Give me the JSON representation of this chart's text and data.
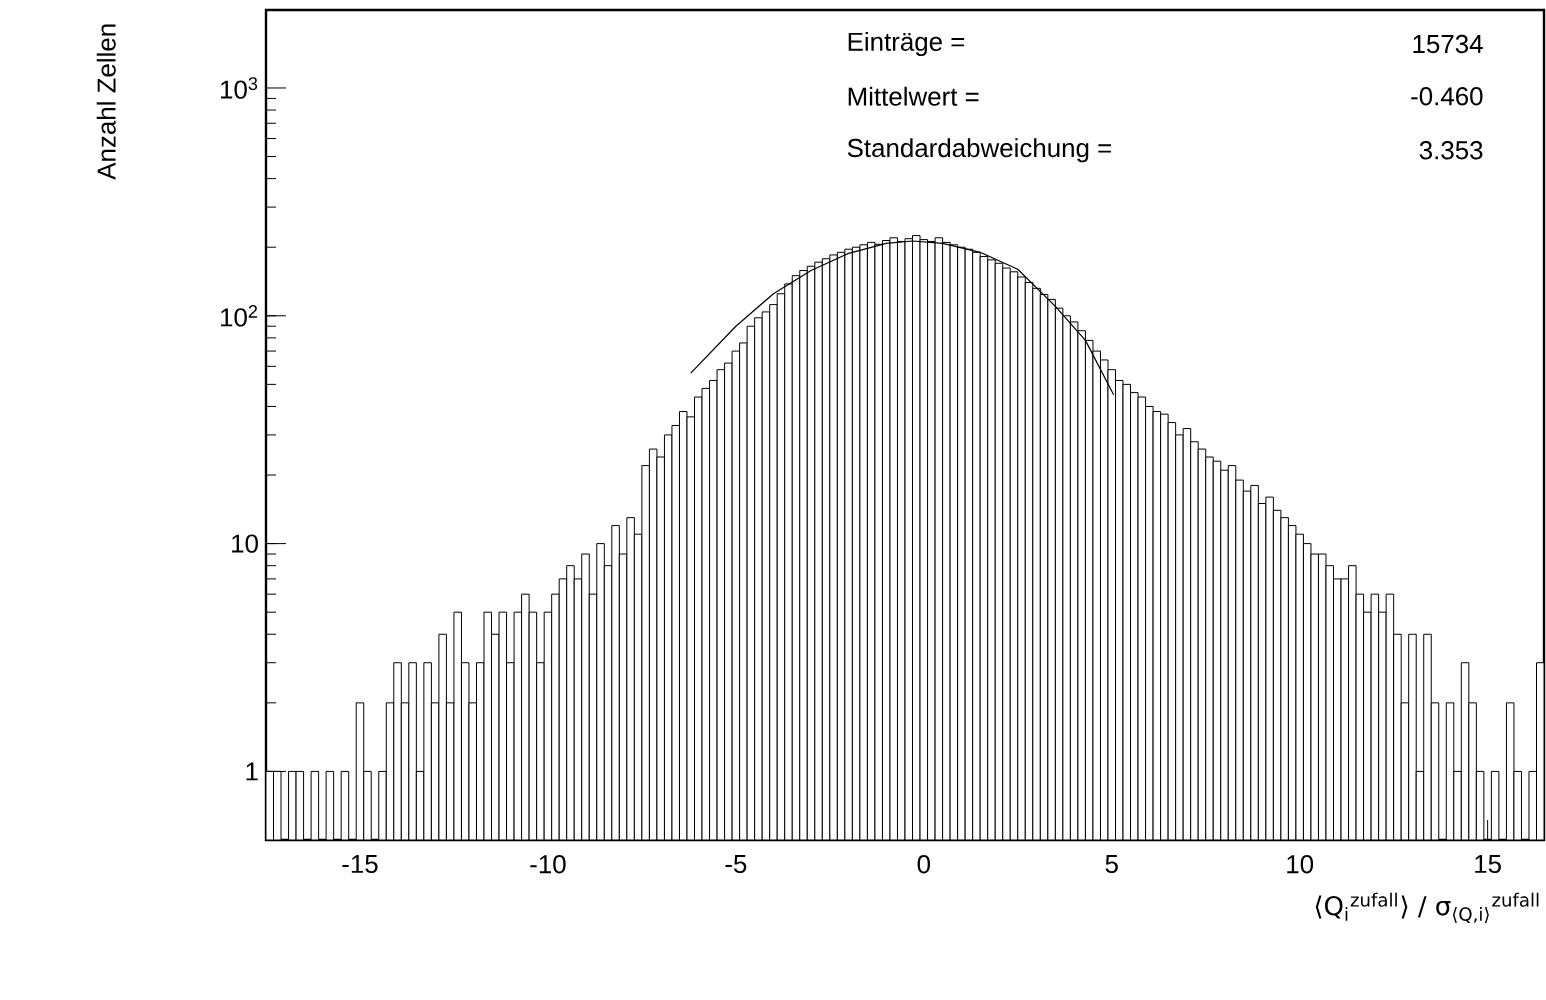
{
  "chart_data": {
    "type": "histogram",
    "xlabel": "⟨Q$_{i}$$^{zufall}$⟩ / σ$_{⟨Q,i⟩}$$^{zufall}$",
    "ylabel": "Anzahl Zellen",
    "log": "y",
    "grid": false,
    "color": "#000000",
    "xlim": [
      -17.5,
      16.5
    ],
    "ylim": [
      0.5,
      2200
    ],
    "xticks": [
      -15,
      -10,
      -5,
      0,
      5,
      10,
      15
    ],
    "yticks": [
      {
        "value": 1,
        "label": "1"
      },
      {
        "value": 10,
        "label": "10"
      },
      {
        "value": 100,
        "label": "10$^{2}$"
      },
      {
        "value": 1000,
        "label": "10$^{3}$"
      }
    ],
    "bins": [
      -17.5,
      -17.3,
      -17.1,
      -16.9,
      -16.7,
      -16.5,
      -16.3,
      -16.1,
      -15.9,
      -15.7,
      -15.5,
      -15.3,
      -15.1,
      -14.9,
      -14.7,
      -14.5,
      -14.3,
      -14.1,
      -13.9,
      -13.7,
      -13.5,
      -13.3,
      -13.1,
      -12.9,
      -12.7,
      -12.5,
      -12.3,
      -12.1,
      -11.9,
      -11.7,
      -11.5,
      -11.3,
      -11.1,
      -10.9,
      -10.7,
      -10.5,
      -10.3,
      -10.1,
      -9.9,
      -9.7,
      -9.5,
      -9.3,
      -9.1,
      -8.9,
      -8.7,
      -8.5,
      -8.3,
      -8.1,
      -7.9,
      -7.7,
      -7.5,
      -7.3,
      -7.1,
      -6.9,
      -6.7,
      -6.5,
      -6.3,
      -6.1,
      -5.9,
      -5.7,
      -5.5,
      -5.3,
      -5.1,
      -4.9,
      -4.7,
      -4.5,
      -4.3,
      -4.1,
      -3.9,
      -3.7,
      -3.5,
      -3.3,
      -3.1,
      -2.9,
      -2.7,
      -2.5,
      -2.3,
      -2.1,
      -1.9,
      -1.7,
      -1.5,
      -1.3,
      -1.1,
      -0.9,
      -0.7,
      -0.5,
      -0.3,
      -0.1,
      0.1,
      0.3,
      0.5,
      0.7,
      0.9,
      1.1,
      1.3,
      1.5,
      1.7,
      1.9,
      2.1,
      2.3,
      2.5,
      2.7,
      2.9,
      3.1,
      3.3,
      3.5,
      3.7,
      3.9,
      4.1,
      4.3,
      4.5,
      4.7,
      4.9,
      5.1,
      5.3,
      5.5,
      5.7,
      5.9,
      6.1,
      6.3,
      6.5,
      6.7,
      6.9,
      7.1,
      7.3,
      7.5,
      7.7,
      7.9,
      8.1,
      8.3,
      8.5,
      8.7,
      8.9,
      9.1,
      9.3,
      9.5,
      9.7,
      9.9,
      10.1,
      10.3,
      10.5,
      10.7,
      10.9,
      11.1,
      11.3,
      11.5,
      11.7,
      11.9,
      12.1,
      12.3,
      12.5,
      12.7,
      12.9,
      13.1,
      13.3,
      13.5,
      13.7,
      13.9,
      14.1,
      14.3,
      14.5,
      14.7,
      14.9,
      15.1,
      15.3,
      15.5,
      15.7,
      15.9,
      16.1,
      16.3,
      16.5
    ],
    "values": [
      1,
      1,
      null,
      1,
      1,
      null,
      1,
      null,
      1,
      null,
      1,
      null,
      2,
      1,
      null,
      1,
      2,
      3,
      2,
      3,
      1,
      3,
      2,
      4,
      2,
      5,
      3,
      2,
      3,
      5,
      4,
      5,
      3,
      5,
      6,
      5,
      3,
      5,
      6,
      7,
      8,
      7,
      9,
      6,
      10,
      8,
      12,
      9,
      13,
      11,
      22,
      26,
      24,
      30,
      33,
      38,
      36,
      44,
      48,
      52,
      58,
      62,
      70,
      76,
      90,
      98,
      104,
      112,
      125,
      138,
      150,
      158,
      165,
      172,
      178,
      185,
      190,
      196,
      200,
      205,
      210,
      206,
      214,
      220,
      212,
      218,
      225,
      216,
      212,
      220,
      210,
      205,
      200,
      196,
      190,
      182,
      176,
      170,
      162,
      156,
      148,
      140,
      132,
      124,
      118,
      108,
      100,
      94,
      86,
      78,
      70,
      64,
      58,
      52,
      50,
      46,
      44,
      40,
      38,
      37,
      34,
      30,
      32,
      28,
      26,
      24,
      23,
      21,
      22,
      19,
      17,
      18,
      15,
      16,
      14,
      13,
      12,
      11,
      10,
      9,
      9,
      8,
      7,
      7,
      8,
      6,
      5,
      6,
      5,
      6,
      4,
      2,
      4,
      1,
      4,
      2,
      null,
      2,
      1,
      3,
      2,
      1,
      null,
      1,
      null,
      2,
      1,
      null,
      1,
      3
    ],
    "series": [
      {
        "type": "line",
        "color": "#000000",
        "x": [
          -6.2,
          -5,
          -4,
          -3,
          -2,
          -1,
          -0.3,
          0.5,
          1.5,
          2.5,
          3.5,
          4.3,
          5.05
        ],
        "values": [
          56,
          90,
          125,
          158,
          188,
          208,
          213,
          208,
          190,
          160,
          110,
          78,
          45
        ]
      }
    ],
    "annotations": [
      "Einträge =",
      "15734",
      "Mittelwert =",
      "-0.460",
      "Standardabweichung =",
      "3.353"
    ]
  }
}
